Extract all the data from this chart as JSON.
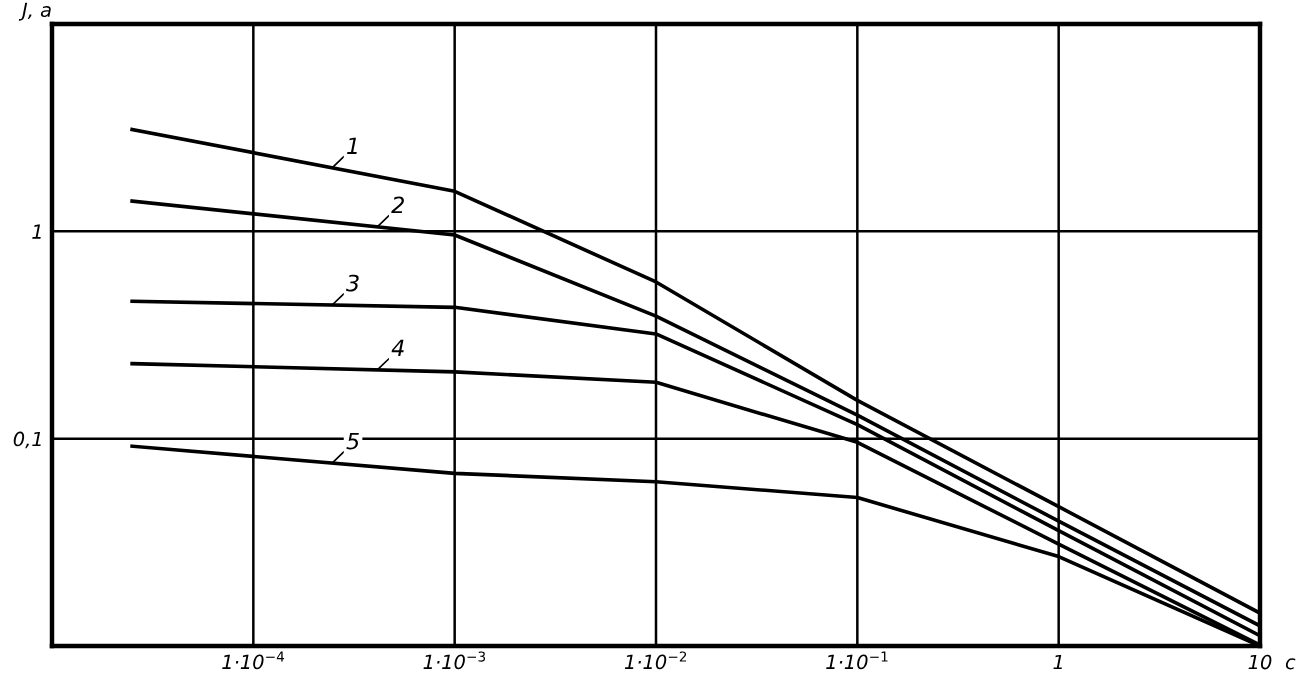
{
  "chart_data": {
    "type": "line",
    "ylabel": "J, a",
    "xlabel": "с",
    "log": "xy",
    "x": [
      2.5e-05,
      0.001,
      0.01,
      0.1,
      1,
      10
    ],
    "series": [
      {
        "name": "1",
        "color": "#000000",
        "values": [
          3.1,
          1.56,
          0.57,
          0.153,
          0.047,
          0.0144
        ]
      },
      {
        "name": "2",
        "color": "#000000",
        "values": [
          1.4,
          0.96,
          0.39,
          0.13,
          0.04,
          0.0125
        ]
      },
      {
        "name": "3",
        "color": "#000000",
        "values": [
          0.46,
          0.43,
          0.32,
          0.117,
          0.036,
          0.0112
        ]
      },
      {
        "name": "4",
        "color": "#000000",
        "values": [
          0.23,
          0.21,
          0.187,
          0.096,
          0.031,
          0.0101
        ]
      },
      {
        "name": "5",
        "color": "#000000",
        "values": [
          0.092,
          0.068,
          0.062,
          0.052,
          0.027,
          0.01
        ]
      }
    ],
    "xlim": [
      1e-05,
      10
    ],
    "ylim": [
      0.01,
      10
    ],
    "xticks": [
      {
        "value": 0.0001,
        "label": "1·10$^{−4}$"
      },
      {
        "value": 0.001,
        "label": "1·10$^{−3}$"
      },
      {
        "value": 0.01,
        "label": "1·10$^{−2}$"
      },
      {
        "value": 0.1,
        "label": "1·10$^{−1}$"
      },
      1,
      10
    ],
    "yticks": [
      1,
      {
        "value": 0.1,
        "label": "0,1"
      }
    ],
    "grid": true,
    "legend": false,
    "marker": "none",
    "line_style": "solid"
  }
}
